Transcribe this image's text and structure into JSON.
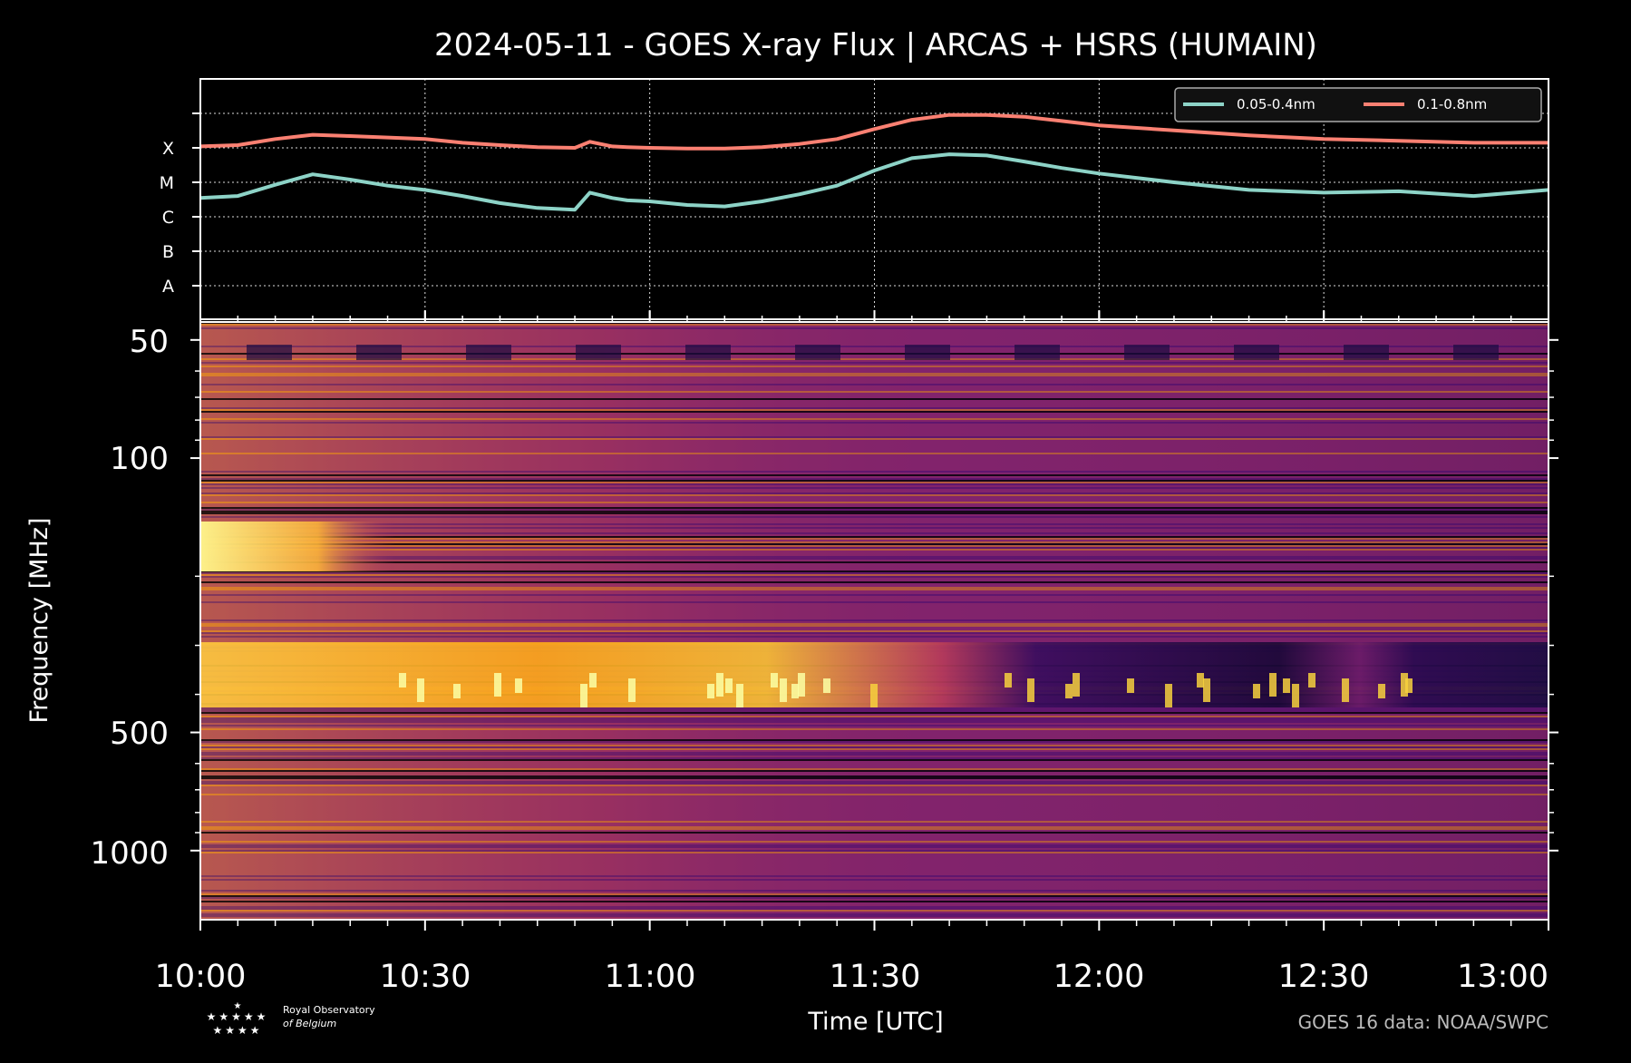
{
  "title": "2024-05-11 - GOES X-ray Flux | ARCAS + HSRS (HUMAIN)",
  "colors": {
    "background": "#000000",
    "short_channel": "#8dd3c7",
    "long_channel": "#fa8072",
    "axis": "#ffffff",
    "colormap": [
      "#000004",
      "#1b0c41",
      "#4a0c6b",
      "#781c6d",
      "#a52c60",
      "#cf4446",
      "#ed6925",
      "#fb9b06",
      "#f7d13d",
      "#fcffa4"
    ]
  },
  "goes_panel": {
    "yticks": [
      "A",
      "B",
      "C",
      "M",
      "X"
    ],
    "legend": {
      "placement": "top-right",
      "entries": [
        "0.05-0.4nm",
        "0.1-0.8nm"
      ]
    }
  },
  "spectrogram": {
    "ylabel": "Frequency [MHz]",
    "yticks": [
      "50",
      "100",
      "500",
      "1000"
    ],
    "frequency_range_mhz": [
      45,
      1500
    ],
    "log_scale": true
  },
  "xaxis": {
    "label": "Time [UTC]",
    "ticks": [
      "10:00",
      "10:30",
      "11:00",
      "11:30",
      "12:00",
      "12:30",
      "13:00"
    ]
  },
  "logo": {
    "line1": "Royal Observatory",
    "line2": "of Belgium",
    "stars": "★"
  },
  "credit": "GOES 16 data: NOAA/SWPC",
  "chart_data": {
    "type": "line",
    "title": "2024-05-11 - GOES X-ray Flux | ARCAS + HSRS (HUMAIN)",
    "xlabel": "Time [UTC]",
    "ylabel": "",
    "yscale": "log",
    "ylim": [
      1e-09,
      0.01
    ],
    "x": [
      "10:00",
      "10:05",
      "10:10",
      "10:15",
      "10:20",
      "10:25",
      "10:30",
      "10:35",
      "10:40",
      "10:45",
      "10:50",
      "10:52",
      "10:55",
      "10:57",
      "11:00",
      "11:05",
      "11:10",
      "11:15",
      "11:20",
      "11:25",
      "11:30",
      "11:35",
      "11:40",
      "11:45",
      "11:50",
      "11:55",
      "12:00",
      "12:10",
      "12:20",
      "12:30",
      "12:40",
      "12:50",
      "13:00"
    ],
    "series": [
      {
        "name": "0.05-0.4nm",
        "values": [
          3.5e-06,
          4e-06,
          8.5e-06,
          1.7e-05,
          1.2e-05,
          8e-06,
          6e-06,
          4e-06,
          2.5e-06,
          1.8e-06,
          1.6e-06,
          5e-06,
          3.5e-06,
          3e-06,
          2.8e-06,
          2.2e-06,
          2e-06,
          2.8e-06,
          4.5e-06,
          8e-06,
          2.2e-05,
          5e-05,
          6.5e-05,
          6e-05,
          4e-05,
          2.6e-05,
          1.8e-05,
          1e-05,
          6e-06,
          5e-06,
          5.5e-06,
          4e-06,
          6e-06
        ]
      },
      {
        "name": "0.1-0.8nm",
        "values": [
          0.00011,
          0.00012,
          0.00018,
          0.00024,
          0.00022,
          0.0002,
          0.00018,
          0.00014,
          0.00012,
          0.000105,
          0.0001,
          0.00015,
          0.00011,
          0.000105,
          0.0001,
          9.5e-05,
          9.5e-05,
          0.000105,
          0.00013,
          0.00018,
          0.00035,
          0.00065,
          0.0009,
          0.0009,
          0.0008,
          0.0006,
          0.00045,
          0.00032,
          0.00023,
          0.00018,
          0.00016,
          0.00014,
          0.00014
        ]
      }
    ],
    "grid": true,
    "legend": "top-right"
  }
}
